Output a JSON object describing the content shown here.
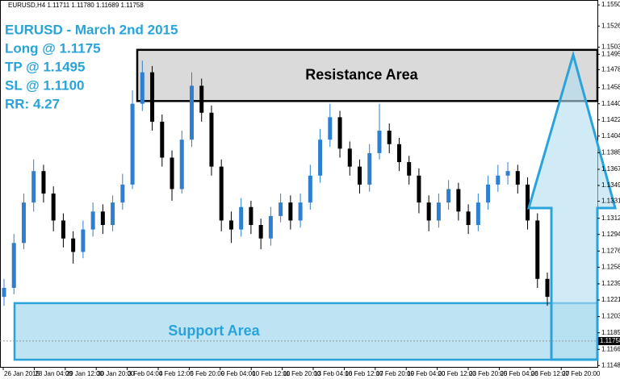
{
  "chart_data": {
    "type": "candlestick",
    "header": "EURUSD,H4  1.11711 1.11780 1.11689 1.11758",
    "annotations": [
      "EURUSD - March 2nd 2015",
      "Long @ 1.1175",
      "TP @ 1.1495",
      "SL @ 1.1100",
      "RR: 4.27"
    ],
    "zones": [
      {
        "label": "Resistance Area",
        "from": 1.1443,
        "to": 1.15,
        "color": "#d3d3d3",
        "border": "#000000"
      },
      {
        "label": "Support Area",
        "from": 1.1155,
        "to": 1.1218,
        "color": "#b3def0",
        "border": "#29a3d9"
      }
    ],
    "x_labels": [
      "26 Jan 2015",
      "28 Jan 04:00",
      "29 Jan 12:00",
      "30 Jan 20:00",
      "3 Feb 04:00",
      "4 Feb 12:00",
      "5 Feb 20:00",
      "9 Feb 04:00",
      "10 Feb 12:00",
      "11 Feb 20:00",
      "13 Feb 04:00",
      "16 Feb 12:00",
      "17 Feb 20:00",
      "19 Feb 04:00",
      "20 Feb 12:00",
      "23 Feb 20:00",
      "25 Feb 04:00",
      "26 Feb 12:00",
      "27 Feb 20:00"
    ],
    "ylim": [
      1.1147,
      1.15555
    ],
    "yticks": [
      {
        "value": 1.155,
        "label": "1.15500"
      },
      {
        "value": 1.15265,
        "label": "1.15265"
      },
      {
        "value": 1.1503,
        "label": "1.15030"
      },
      {
        "value": 1.1495,
        "label": "1.14950"
      },
      {
        "value": 1.1478,
        "label": "1.14780"
      },
      {
        "value": 1.1458,
        "label": "1.14580"
      },
      {
        "value": 1.144,
        "label": "1.14400"
      },
      {
        "value": 1.1422,
        "label": "1.14220"
      },
      {
        "value": 1.1404,
        "label": "1.14040"
      },
      {
        "value": 1.13855,
        "label": "1.13855"
      },
      {
        "value": 1.1367,
        "label": "1.13670"
      },
      {
        "value": 1.1349,
        "label": "1.13490"
      },
      {
        "value": 1.13315,
        "label": "1.13315"
      },
      {
        "value": 1.13125,
        "label": "1.13125"
      },
      {
        "value": 1.12945,
        "label": "1.12945"
      },
      {
        "value": 1.1276,
        "label": "1.12760"
      },
      {
        "value": 1.1258,
        "label": "1.12580"
      },
      {
        "value": 1.12395,
        "label": "1.12395"
      },
      {
        "value": 1.12215,
        "label": "1.12215"
      },
      {
        "value": 1.1203,
        "label": "1.12030"
      },
      {
        "value": 1.1185,
        "label": "1.11850"
      },
      {
        "value": 1.11665,
        "label": "1.11665"
      },
      {
        "value": 1.11485,
        "label": "1.11485"
      }
    ],
    "last_price": 1.11758,
    "up_color": "#2f7fd0",
    "down_color": "#000000",
    "open": [
      1.1225,
      1.1235,
      1.1285,
      1.133,
      1.1365,
      1.134,
      1.131,
      1.129,
      1.1275,
      1.13,
      1.132,
      1.1305,
      1.133,
      1.135,
      1.144,
      1.1475,
      1.142,
      1.138,
      1.1345,
      1.14,
      1.146,
      1.143,
      1.137,
      1.131,
      1.13,
      1.1325,
      1.1305,
      1.129,
      1.1315,
      1.133,
      1.131,
      1.133,
      1.136,
      1.14,
      1.1425,
      1.139,
      1.137,
      1.135,
      1.1385,
      1.141,
      1.1395,
      1.1375,
      1.136,
      1.133,
      1.131,
      1.133,
      1.1345,
      1.132,
      1.1305,
      1.133,
      1.135,
      1.136,
      1.1365,
      1.135,
      1.131,
      1.1245
    ],
    "high": [
      1.1245,
      1.1295,
      1.134,
      1.1378,
      1.1372,
      1.1348,
      1.1318,
      1.1298,
      1.131,
      1.133,
      1.1328,
      1.1338,
      1.1362,
      1.1455,
      1.1488,
      1.1482,
      1.1428,
      1.1388,
      1.141,
      1.1475,
      1.1468,
      1.1438,
      1.1378,
      1.132,
      1.1335,
      1.1332,
      1.1312,
      1.1325,
      1.134,
      1.1338,
      1.134,
      1.1372,
      1.1412,
      1.144,
      1.1432,
      1.1398,
      1.1378,
      1.1395,
      1.144,
      1.1418,
      1.1402,
      1.1382,
      1.1368,
      1.1338,
      1.134,
      1.1355,
      1.1352,
      1.1328,
      1.134,
      1.136,
      1.1372,
      1.1375,
      1.1372,
      1.1358,
      1.1318,
      1.1252
    ],
    "low": [
      1.1215,
      1.1228,
      1.1278,
      1.132,
      1.133,
      1.1298,
      1.128,
      1.1262,
      1.1268,
      1.1292,
      1.1295,
      1.1298,
      1.1322,
      1.1345,
      1.1432,
      1.141,
      1.137,
      1.1332,
      1.134,
      1.1392,
      1.142,
      1.136,
      1.1298,
      1.1285,
      1.1292,
      1.1295,
      1.1278,
      1.1282,
      1.1308,
      1.13,
      1.1302,
      1.1322,
      1.1352,
      1.1392,
      1.138,
      1.136,
      1.134,
      1.1342,
      1.1378,
      1.1385,
      1.1365,
      1.135,
      1.1318,
      1.1298,
      1.1302,
      1.1322,
      1.131,
      1.1295,
      1.1298,
      1.1322,
      1.1342,
      1.135,
      1.134,
      1.13,
      1.1235,
      1.1215
    ],
    "close": [
      1.1235,
      1.1285,
      1.133,
      1.1365,
      1.134,
      1.131,
      1.129,
      1.1275,
      1.13,
      1.132,
      1.1305,
      1.133,
      1.135,
      1.144,
      1.1475,
      1.142,
      1.138,
      1.1345,
      1.14,
      1.146,
      1.143,
      1.137,
      1.131,
      1.13,
      1.1325,
      1.1305,
      1.129,
      1.1315,
      1.133,
      1.131,
      1.133,
      1.136,
      1.14,
      1.1425,
      1.139,
      1.137,
      1.135,
      1.1385,
      1.141,
      1.1395,
      1.1375,
      1.136,
      1.133,
      1.131,
      1.133,
      1.1345,
      1.132,
      1.1305,
      1.133,
      1.135,
      1.136,
      1.1365,
      1.135,
      1.131,
      1.1245,
      1.1225
    ]
  }
}
